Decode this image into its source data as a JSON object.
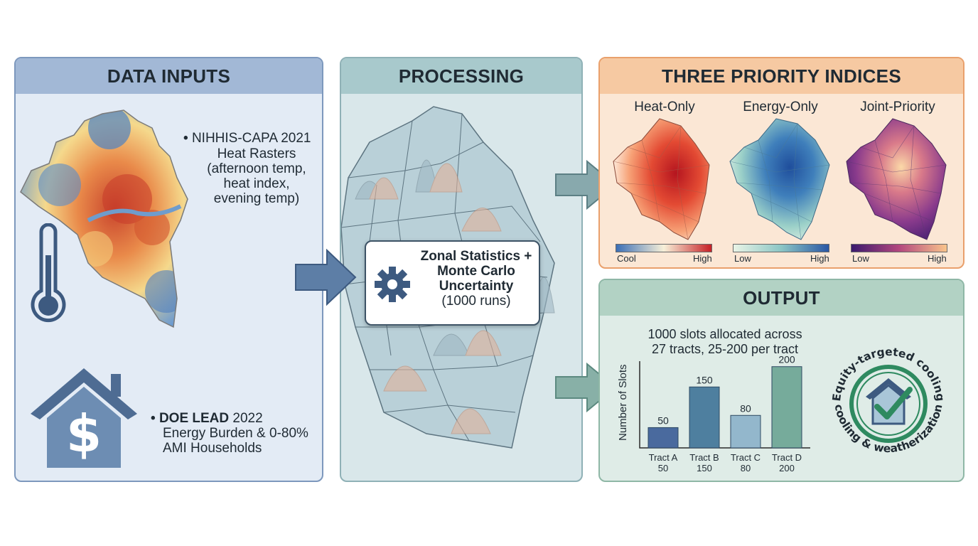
{
  "panels": {
    "inputs": {
      "title": "DATA INPUTS",
      "bullet1": [
        "NIHHIS-CAPA 2021",
        "Heat Rasters",
        "(afternoon temp,",
        "heat index,",
        "evening temp)"
      ],
      "bullet2": {
        "bold": "DOE LEAD",
        "rest": " 2022",
        "lines": [
          "Energy Burden & 0-80%",
          "AMI Households"
        ]
      }
    },
    "processing": {
      "title": "PROCESSING",
      "box_lines": [
        "Zonal Statistics +",
        "Monte Carlo",
        "Uncertainty",
        "(1000 runs)"
      ]
    },
    "indices": {
      "title": "THREE PRIORITY INDICES",
      "maps": [
        {
          "title": "Heat-Only",
          "low": "Cool",
          "high": "High",
          "colors": [
            "#3b6fb6",
            "#f7f0d8",
            "#c62026"
          ]
        },
        {
          "title": "Energy-Only",
          "low": "Low",
          "high": "High",
          "colors": [
            "#e9f4e6",
            "#8cc6c5",
            "#2a57a4"
          ]
        },
        {
          "title": "Joint-Priority",
          "low": "Low",
          "high": "High",
          "colors": [
            "#3b1a6e",
            "#b3477e",
            "#f9c48b"
          ]
        }
      ]
    },
    "output": {
      "title": "OUTPUT",
      "caption": [
        "1000 slots allocated across",
        "27 tracts, 25-200 per tract"
      ],
      "ylabel": "Number of Slots",
      "badge_top": "Equity-targeted cooling",
      "badge_bottom": "cooling & weatherization"
    }
  },
  "chart_data": {
    "type": "bar",
    "categories": [
      "Tract A",
      "Tract B",
      "Tract C",
      "Tract D"
    ],
    "sublabels": [
      "50",
      "150",
      "80",
      "200"
    ],
    "values": [
      50,
      150,
      80,
      200
    ],
    "colors": [
      "#4a6a9e",
      "#4e7f9f",
      "#93b7cc",
      "#76ab9b"
    ],
    "ylabel": "Number of Slots",
    "ylim": [
      0,
      210
    ]
  },
  "colors": {
    "arrow": "#88a9ad",
    "arrow_border": "#5c7f84",
    "dark": "#3d5366"
  }
}
